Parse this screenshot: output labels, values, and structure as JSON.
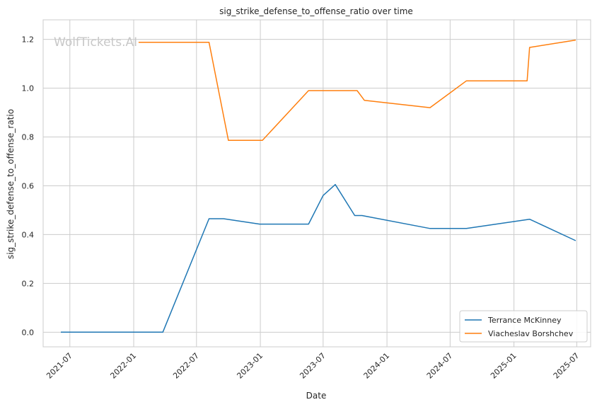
{
  "chart_data": {
    "type": "line",
    "title": "sig_strike_defense_to_offense_ratio over time",
    "xlabel": "Date",
    "ylabel": "sig_strike_defense_to_offense_ratio",
    "watermark": "WolfTickets.AI",
    "x_ticks": [
      "2021-07",
      "2022-01",
      "2022-07",
      "2023-01",
      "2023-07",
      "2024-01",
      "2024-07",
      "2025-01",
      "2025-07"
    ],
    "y_ticks": [
      "0.0",
      "0.2",
      "0.4",
      "0.6",
      "0.8",
      "1.0",
      "1.2"
    ],
    "xlim": [
      "2021-04-15",
      "2025-08-10"
    ],
    "ylim": [
      -0.06,
      1.28
    ],
    "grid": true,
    "legend_position": "lower-right",
    "series": [
      {
        "name": "Terrance McKinney",
        "color": "#1f77b4",
        "points": [
          [
            "2021-06-05",
            0.0
          ],
          [
            "2022-01-15",
            0.0
          ],
          [
            "2022-03-26",
            0.0
          ],
          [
            "2022-08-06",
            0.465
          ],
          [
            "2022-09-17",
            0.465
          ],
          [
            "2022-12-30",
            0.443
          ],
          [
            "2023-05-20",
            0.443
          ],
          [
            "2023-07-01",
            0.56
          ],
          [
            "2023-08-05",
            0.605
          ],
          [
            "2023-09-30",
            0.478
          ],
          [
            "2023-10-21",
            0.478
          ],
          [
            "2024-05-04",
            0.425
          ],
          [
            "2024-08-17",
            0.425
          ],
          [
            "2025-02-15",
            0.463
          ],
          [
            "2025-06-28",
            0.375
          ]
        ]
      },
      {
        "name": "Viacheslav Borshchev",
        "color": "#ff7f0e",
        "points": [
          [
            "2022-01-15",
            1.188
          ],
          [
            "2022-08-06",
            1.188
          ],
          [
            "2022-10-01",
            0.786
          ],
          [
            "2023-01-07",
            0.786
          ],
          [
            "2023-05-20",
            0.99
          ],
          [
            "2023-10-07",
            0.99
          ],
          [
            "2023-10-28",
            0.95
          ],
          [
            "2024-05-04",
            0.92
          ],
          [
            "2024-08-17",
            1.03
          ],
          [
            "2025-02-08",
            1.03
          ],
          [
            "2025-02-15",
            1.167
          ],
          [
            "2025-06-28",
            1.197
          ]
        ]
      }
    ]
  }
}
